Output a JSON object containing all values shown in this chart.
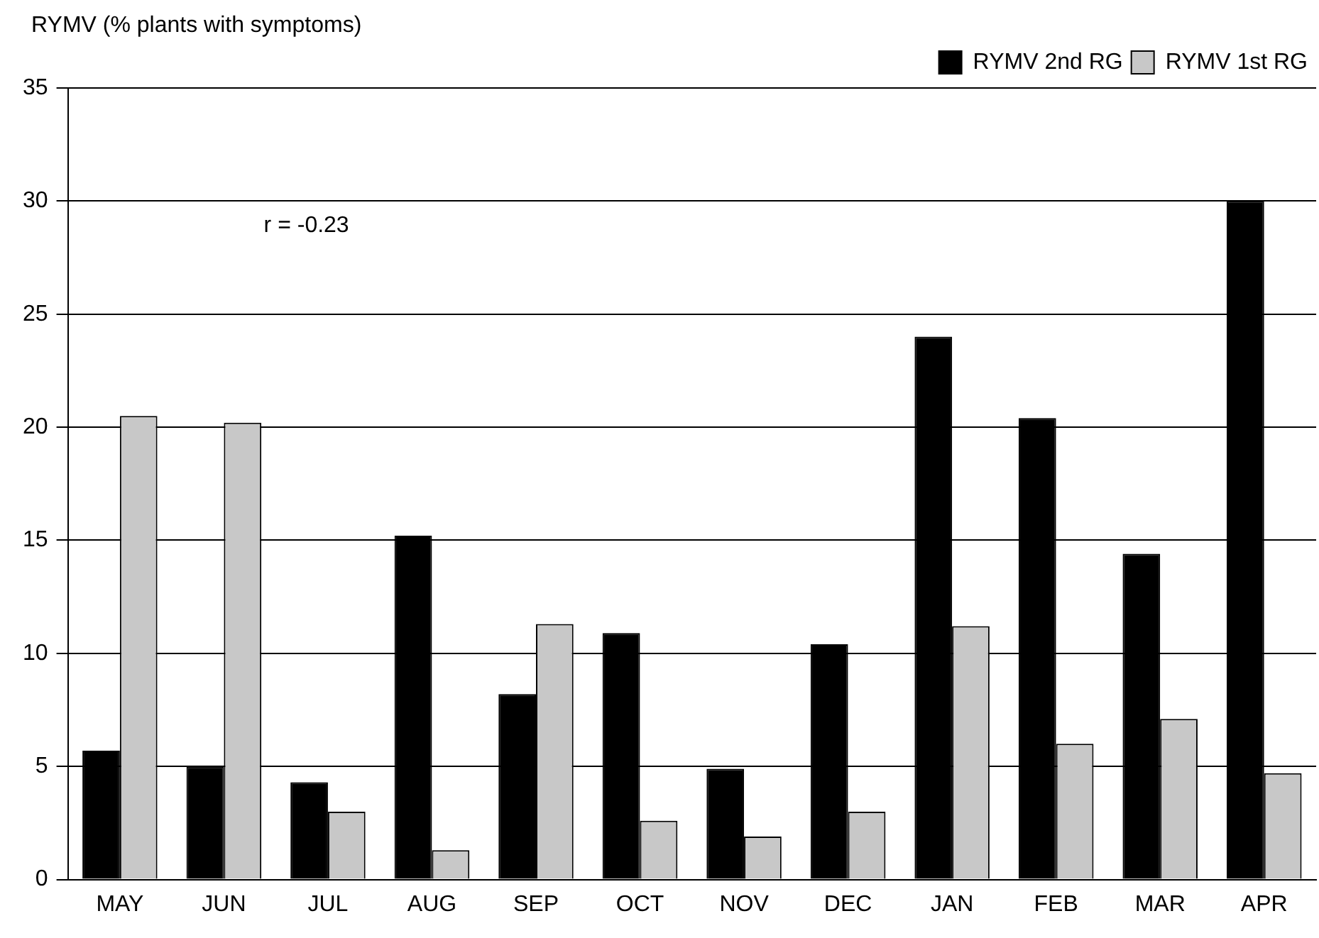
{
  "chart_data": {
    "type": "bar",
    "ylabel": "RYMV (% plants with symptoms)",
    "categories": [
      "MAY",
      "JUN",
      "JUL",
      "AUG",
      "SEP",
      "OCT",
      "NOV",
      "DEC",
      "JAN",
      "FEB",
      "MAR",
      "APR"
    ],
    "series": [
      {
        "name": "RYMV 2nd RG",
        "color": "#000000",
        "values": [
          5.7,
          5.0,
          4.3,
          15.2,
          8.2,
          10.9,
          4.9,
          10.4,
          24.0,
          20.4,
          14.4,
          30.0
        ]
      },
      {
        "name": "RYMV 1st RG",
        "color": "#c8c8c8",
        "values": [
          20.5,
          20.2,
          3.0,
          1.3,
          11.3,
          2.6,
          1.9,
          3.0,
          11.2,
          6.0,
          7.1,
          4.7
        ]
      }
    ],
    "ylim": [
      0,
      35
    ],
    "yticks": [
      0,
      5,
      10,
      15,
      20,
      25,
      30,
      35
    ],
    "grid": "y",
    "legend": "top right",
    "annotations": [
      "r = -0.23"
    ]
  }
}
